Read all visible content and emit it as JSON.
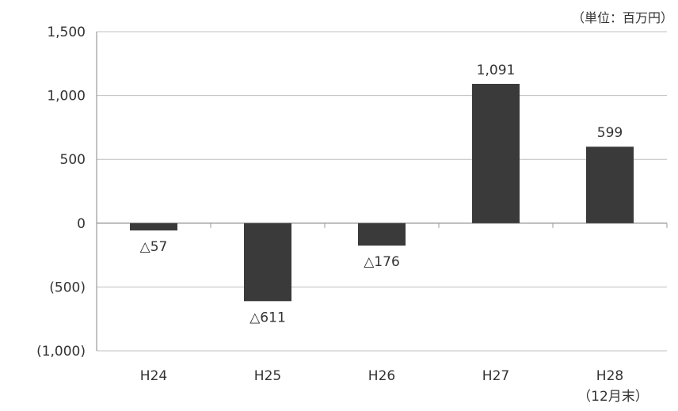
{
  "chart_data": {
    "type": "bar",
    "unit": "（単位：百万円）",
    "categories": [
      "H24",
      "H25",
      "H26",
      "H27",
      "H28"
    ],
    "category_sublabels": [
      "",
      "",
      "",
      "",
      "（12月末）"
    ],
    "values": [
      -57,
      -611,
      -176,
      1091,
      599
    ],
    "value_labels": [
      "△57",
      "△611",
      "△176",
      "1,091",
      "599"
    ],
    "yticks": [
      {
        "value": 1500,
        "label": "1,500"
      },
      {
        "value": 1000,
        "label": "1,000"
      },
      {
        "value": 500,
        "label": "500"
      },
      {
        "value": 0,
        "label": "0"
      },
      {
        "value": -500,
        "label": "(500)"
      },
      {
        "value": -1000,
        "label": "(1,000)"
      }
    ],
    "ylim": [
      -1000,
      1500
    ],
    "grid": true,
    "bar_color": "#3a3a3a",
    "grid_color": "#bfbfbf",
    "axis_color": "#9a9a9a"
  }
}
